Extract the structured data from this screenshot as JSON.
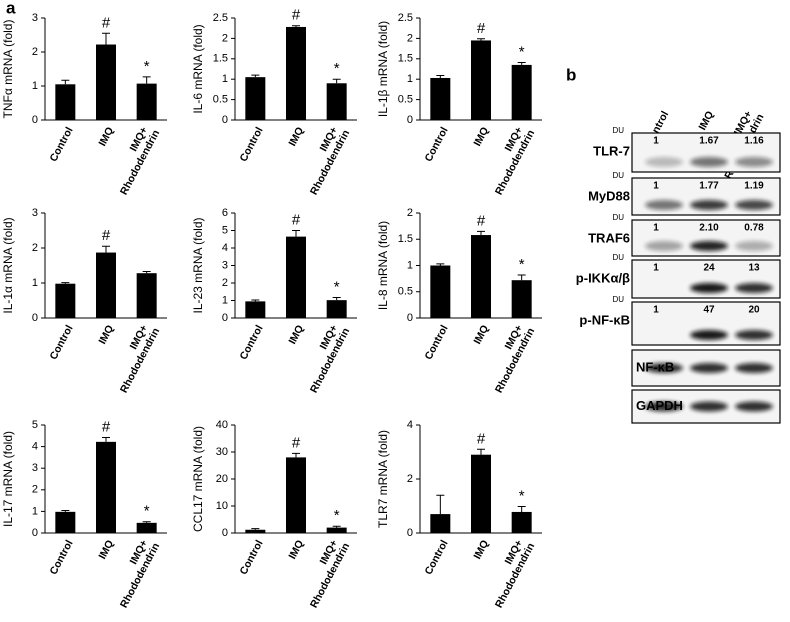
{
  "panel_a_label": "a",
  "chart_data": [
    {
      "type": "bar",
      "y_label": "TNFα mRNA (fold)",
      "categories": [
        "Control",
        "IMQ",
        "IMQ+ Rhododendrin"
      ],
      "values": [
        1.05,
        2.22,
        1.07
      ],
      "errors": [
        0.12,
        0.33,
        0.2
      ],
      "significance": [
        null,
        "#",
        "*"
      ],
      "color": "#000000",
      "ylim": [
        0,
        3
      ],
      "yticks": [
        0,
        1,
        2,
        3
      ]
    },
    {
      "type": "bar",
      "y_label": "IL-6 mRNA (fold)",
      "categories": [
        "Control",
        "IMQ",
        "IMQ+ Rhododendrin"
      ],
      "values": [
        1.05,
        2.28,
        0.9
      ],
      "errors": [
        0.05,
        0.03,
        0.1
      ],
      "significance": [
        null,
        "#",
        "*"
      ],
      "color": "#000000",
      "ylim": [
        0,
        2.5
      ],
      "yticks": [
        0,
        0.5,
        1,
        1.5,
        2,
        2.5
      ]
    },
    {
      "type": "bar",
      "y_label": "IL-1β mRNA (fold)",
      "categories": [
        "Control",
        "IMQ",
        "IMQ+ Rhododendrin"
      ],
      "values": [
        1.03,
        1.95,
        1.35
      ],
      "errors": [
        0.06,
        0.04,
        0.06
      ],
      "significance": [
        null,
        "#",
        "*"
      ],
      "color": "#000000",
      "ylim": [
        0,
        2.5
      ],
      "yticks": [
        0,
        0.5,
        1,
        1.5,
        2,
        2.5
      ]
    },
    {
      "type": "bar",
      "y_label": "IL-1α mRNA (fold)",
      "categories": [
        "Control",
        "IMQ",
        "IMQ+ Rhododendrin"
      ],
      "values": [
        0.98,
        1.87,
        1.28
      ],
      "errors": [
        0.03,
        0.18,
        0.05
      ],
      "significance": [
        null,
        "#",
        null
      ],
      "color": "#000000",
      "ylim": [
        0,
        3
      ],
      "yticks": [
        0,
        1,
        2,
        3
      ]
    },
    {
      "type": "bar",
      "y_label": "IL-23 mRNA (fold)",
      "categories": [
        "Control",
        "IMQ",
        "IMQ+ Rhododendrin"
      ],
      "values": [
        0.95,
        4.65,
        1.02
      ],
      "errors": [
        0.08,
        0.35,
        0.15
      ],
      "significance": [
        null,
        "#",
        "*"
      ],
      "color": "#000000",
      "ylim": [
        0,
        6
      ],
      "yticks": [
        0,
        1,
        2,
        3,
        4,
        5,
        6
      ]
    },
    {
      "type": "bar",
      "y_label": "IL-8 mRNA (fold)",
      "categories": [
        "Control",
        "IMQ",
        "IMQ+ Rhododendrin"
      ],
      "values": [
        1.0,
        1.58,
        0.72
      ],
      "errors": [
        0.03,
        0.07,
        0.1
      ],
      "significance": [
        null,
        "#",
        "*"
      ],
      "color": "#000000",
      "ylim": [
        0,
        2
      ],
      "yticks": [
        0,
        0.5,
        1,
        1.5,
        2
      ]
    },
    {
      "type": "bar",
      "y_label": "IL-17 mRNA (fold)",
      "categories": [
        "Control",
        "IMQ",
        "IMQ+ Rhododendrin"
      ],
      "values": [
        0.98,
        4.22,
        0.47
      ],
      "errors": [
        0.06,
        0.2,
        0.05
      ],
      "significance": [
        null,
        "#",
        "*"
      ],
      "color": "#000000",
      "ylim": [
        0,
        5
      ],
      "yticks": [
        0,
        1,
        2,
        3,
        4,
        5
      ]
    },
    {
      "type": "bar",
      "y_label": "CCL17 mRNA (fold)",
      "categories": [
        "Control",
        "IMQ",
        "IMQ+ Rhododendrin"
      ],
      "values": [
        1.2,
        28,
        2.0
      ],
      "errors": [
        0.4,
        1.5,
        0.5
      ],
      "significance": [
        null,
        "#",
        "*"
      ],
      "color": "#000000",
      "ylim": [
        0,
        40
      ],
      "yticks": [
        0,
        10,
        20,
        30,
        40
      ]
    },
    {
      "type": "bar",
      "y_label": "TLR7 mRNA (fold)",
      "categories": [
        "Control",
        "IMQ",
        "IMQ+ Rhododendrin"
      ],
      "values": [
        0.7,
        2.9,
        0.78
      ],
      "errors": [
        0.7,
        0.2,
        0.2
      ],
      "significance": [
        null,
        "#",
        "*"
      ],
      "color": "#000000",
      "ylim": [
        0,
        4
      ],
      "yticks": [
        0,
        2,
        4
      ]
    }
  ],
  "blot": {
    "label": "b",
    "lanes": [
      "Control",
      "IMQ",
      "IMQ+ Rhododendrin"
    ],
    "rows": [
      {
        "name": "TLR-7",
        "unit": "DU",
        "values": [
          "1",
          "1.67",
          "1.16"
        ]
      },
      {
        "name": "MyD88",
        "unit": "DU",
        "values": [
          "1",
          "1.77",
          "1.19"
        ]
      },
      {
        "name": "TRAF6",
        "unit": "DU",
        "values": [
          "1",
          "2.10",
          "0.78"
        ]
      },
      {
        "name": "p-IKKα/β",
        "unit": "DU",
        "values": [
          "1",
          "24",
          "13"
        ]
      },
      {
        "name": "p-NF-κB",
        "unit": "DU",
        "values": [
          "1",
          "47",
          "20"
        ]
      },
      {
        "name": "NF-κB"
      },
      {
        "name": "GAPDH"
      }
    ]
  }
}
